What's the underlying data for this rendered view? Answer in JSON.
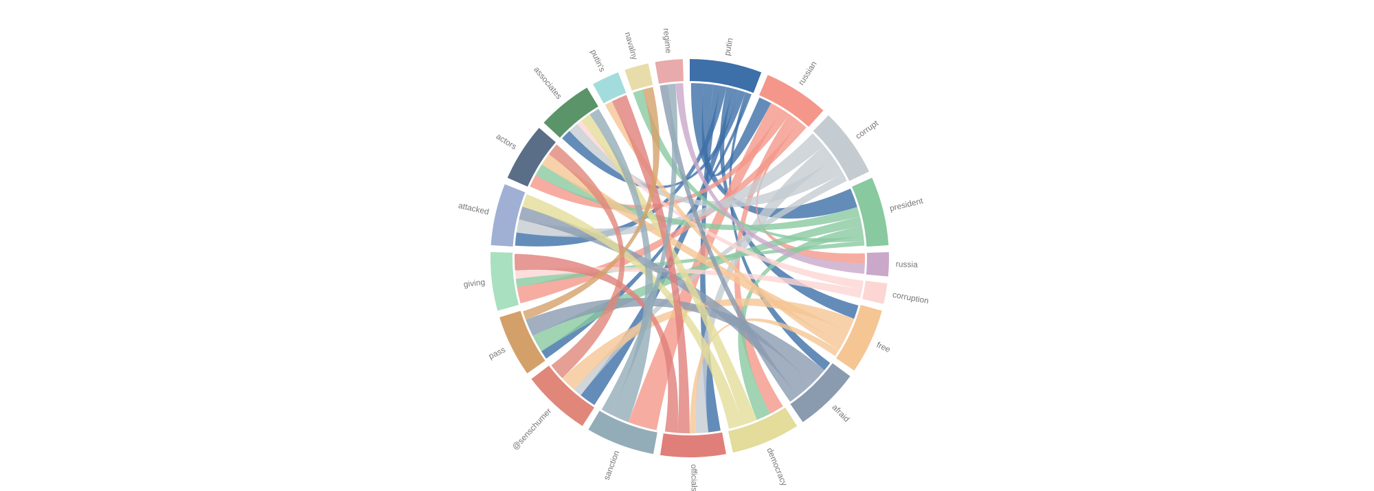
{
  "chart_data": {
    "type": "chord",
    "categories": [
      "putin",
      "russian",
      "corrupt",
      "president",
      "russia",
      "corruption",
      "free",
      "afraid",
      "democracy",
      "officials",
      "sanction",
      "@senschumer",
      "pass",
      "giving",
      "attacked",
      "actors",
      "associates",
      "putin's",
      "navalny",
      "regime"
    ],
    "values": [
      21,
      19,
      20,
      20,
      7,
      6,
      19,
      19,
      20,
      19,
      20,
      20,
      18,
      17,
      18,
      17,
      16,
      8,
      7,
      8
    ],
    "colors": [
      "#3d6fa8",
      "#f4978a",
      "#c4ccd1",
      "#88c9a0",
      "#c9a8c9",
      "#fcd6d3",
      "#f5c594",
      "#8a9bb0",
      "#e3dc9a",
      "#e07f7a",
      "#93adb8",
      "#e0877a",
      "#d4a06a",
      "#a8e0c0",
      "#9fb0d4",
      "#5a6e87",
      "#5a9468",
      "#a3dcdc",
      "#e8dcaa",
      "#e8aaaa"
    ],
    "links": [
      {
        "source": 0,
        "target": 3,
        "value": 4
      },
      {
        "source": 0,
        "target": 1,
        "value": 3
      },
      {
        "source": 0,
        "target": 9,
        "value": 2
      },
      {
        "source": 0,
        "target": 14,
        "value": 2
      },
      {
        "source": 0,
        "target": 6,
        "value": 2
      },
      {
        "source": 0,
        "target": 11,
        "value": 2
      },
      {
        "source": 0,
        "target": 16,
        "value": 2
      },
      {
        "source": 0,
        "target": 7,
        "value": 1
      },
      {
        "source": 0,
        "target": 12,
        "value": 1
      },
      {
        "source": 1,
        "target": 10,
        "value": 3
      },
      {
        "source": 1,
        "target": 15,
        "value": 2
      },
      {
        "source": 1,
        "target": 8,
        "value": 2
      },
      {
        "source": 1,
        "target": 4,
        "value": 1
      },
      {
        "source": 1,
        "target": 13,
        "value": 2
      },
      {
        "source": 2,
        "target": 14,
        "value": 2
      },
      {
        "source": 2,
        "target": 9,
        "value": 2
      },
      {
        "source": 2,
        "target": 16,
        "value": 2
      },
      {
        "source": 2,
        "target": 11,
        "value": 1
      },
      {
        "source": 3,
        "target": 15,
        "value": 2
      },
      {
        "source": 3,
        "target": 12,
        "value": 2
      },
      {
        "source": 3,
        "target": 8,
        "value": 2
      },
      {
        "source": 3,
        "target": 18,
        "value": 1
      },
      {
        "source": 3,
        "target": 13,
        "value": 1
      },
      {
        "source": 5,
        "target": 16,
        "value": 1
      },
      {
        "source": 5,
        "target": 13,
        "value": 1
      },
      {
        "source": 6,
        "target": 11,
        "value": 2
      },
      {
        "source": 6,
        "target": 15,
        "value": 2
      },
      {
        "source": 6,
        "target": 17,
        "value": 1
      },
      {
        "source": 6,
        "target": 9,
        "value": 1
      },
      {
        "source": 7,
        "target": 12,
        "value": 2
      },
      {
        "source": 7,
        "target": 14,
        "value": 2
      },
      {
        "source": 7,
        "target": 19,
        "value": 1
      },
      {
        "source": 8,
        "target": 16,
        "value": 2
      },
      {
        "source": 8,
        "target": 14,
        "value": 2
      },
      {
        "source": 9,
        "target": 17,
        "value": 2
      },
      {
        "source": 9,
        "target": 13,
        "value": 2
      },
      {
        "source": 10,
        "target": 16,
        "value": 2
      },
      {
        "source": 10,
        "target": 19,
        "value": 1
      },
      {
        "source": 11,
        "target": 15,
        "value": 2
      },
      {
        "source": 12,
        "target": 18,
        "value": 1
      },
      {
        "source": 4,
        "target": 19,
        "value": 1
      }
    ]
  }
}
